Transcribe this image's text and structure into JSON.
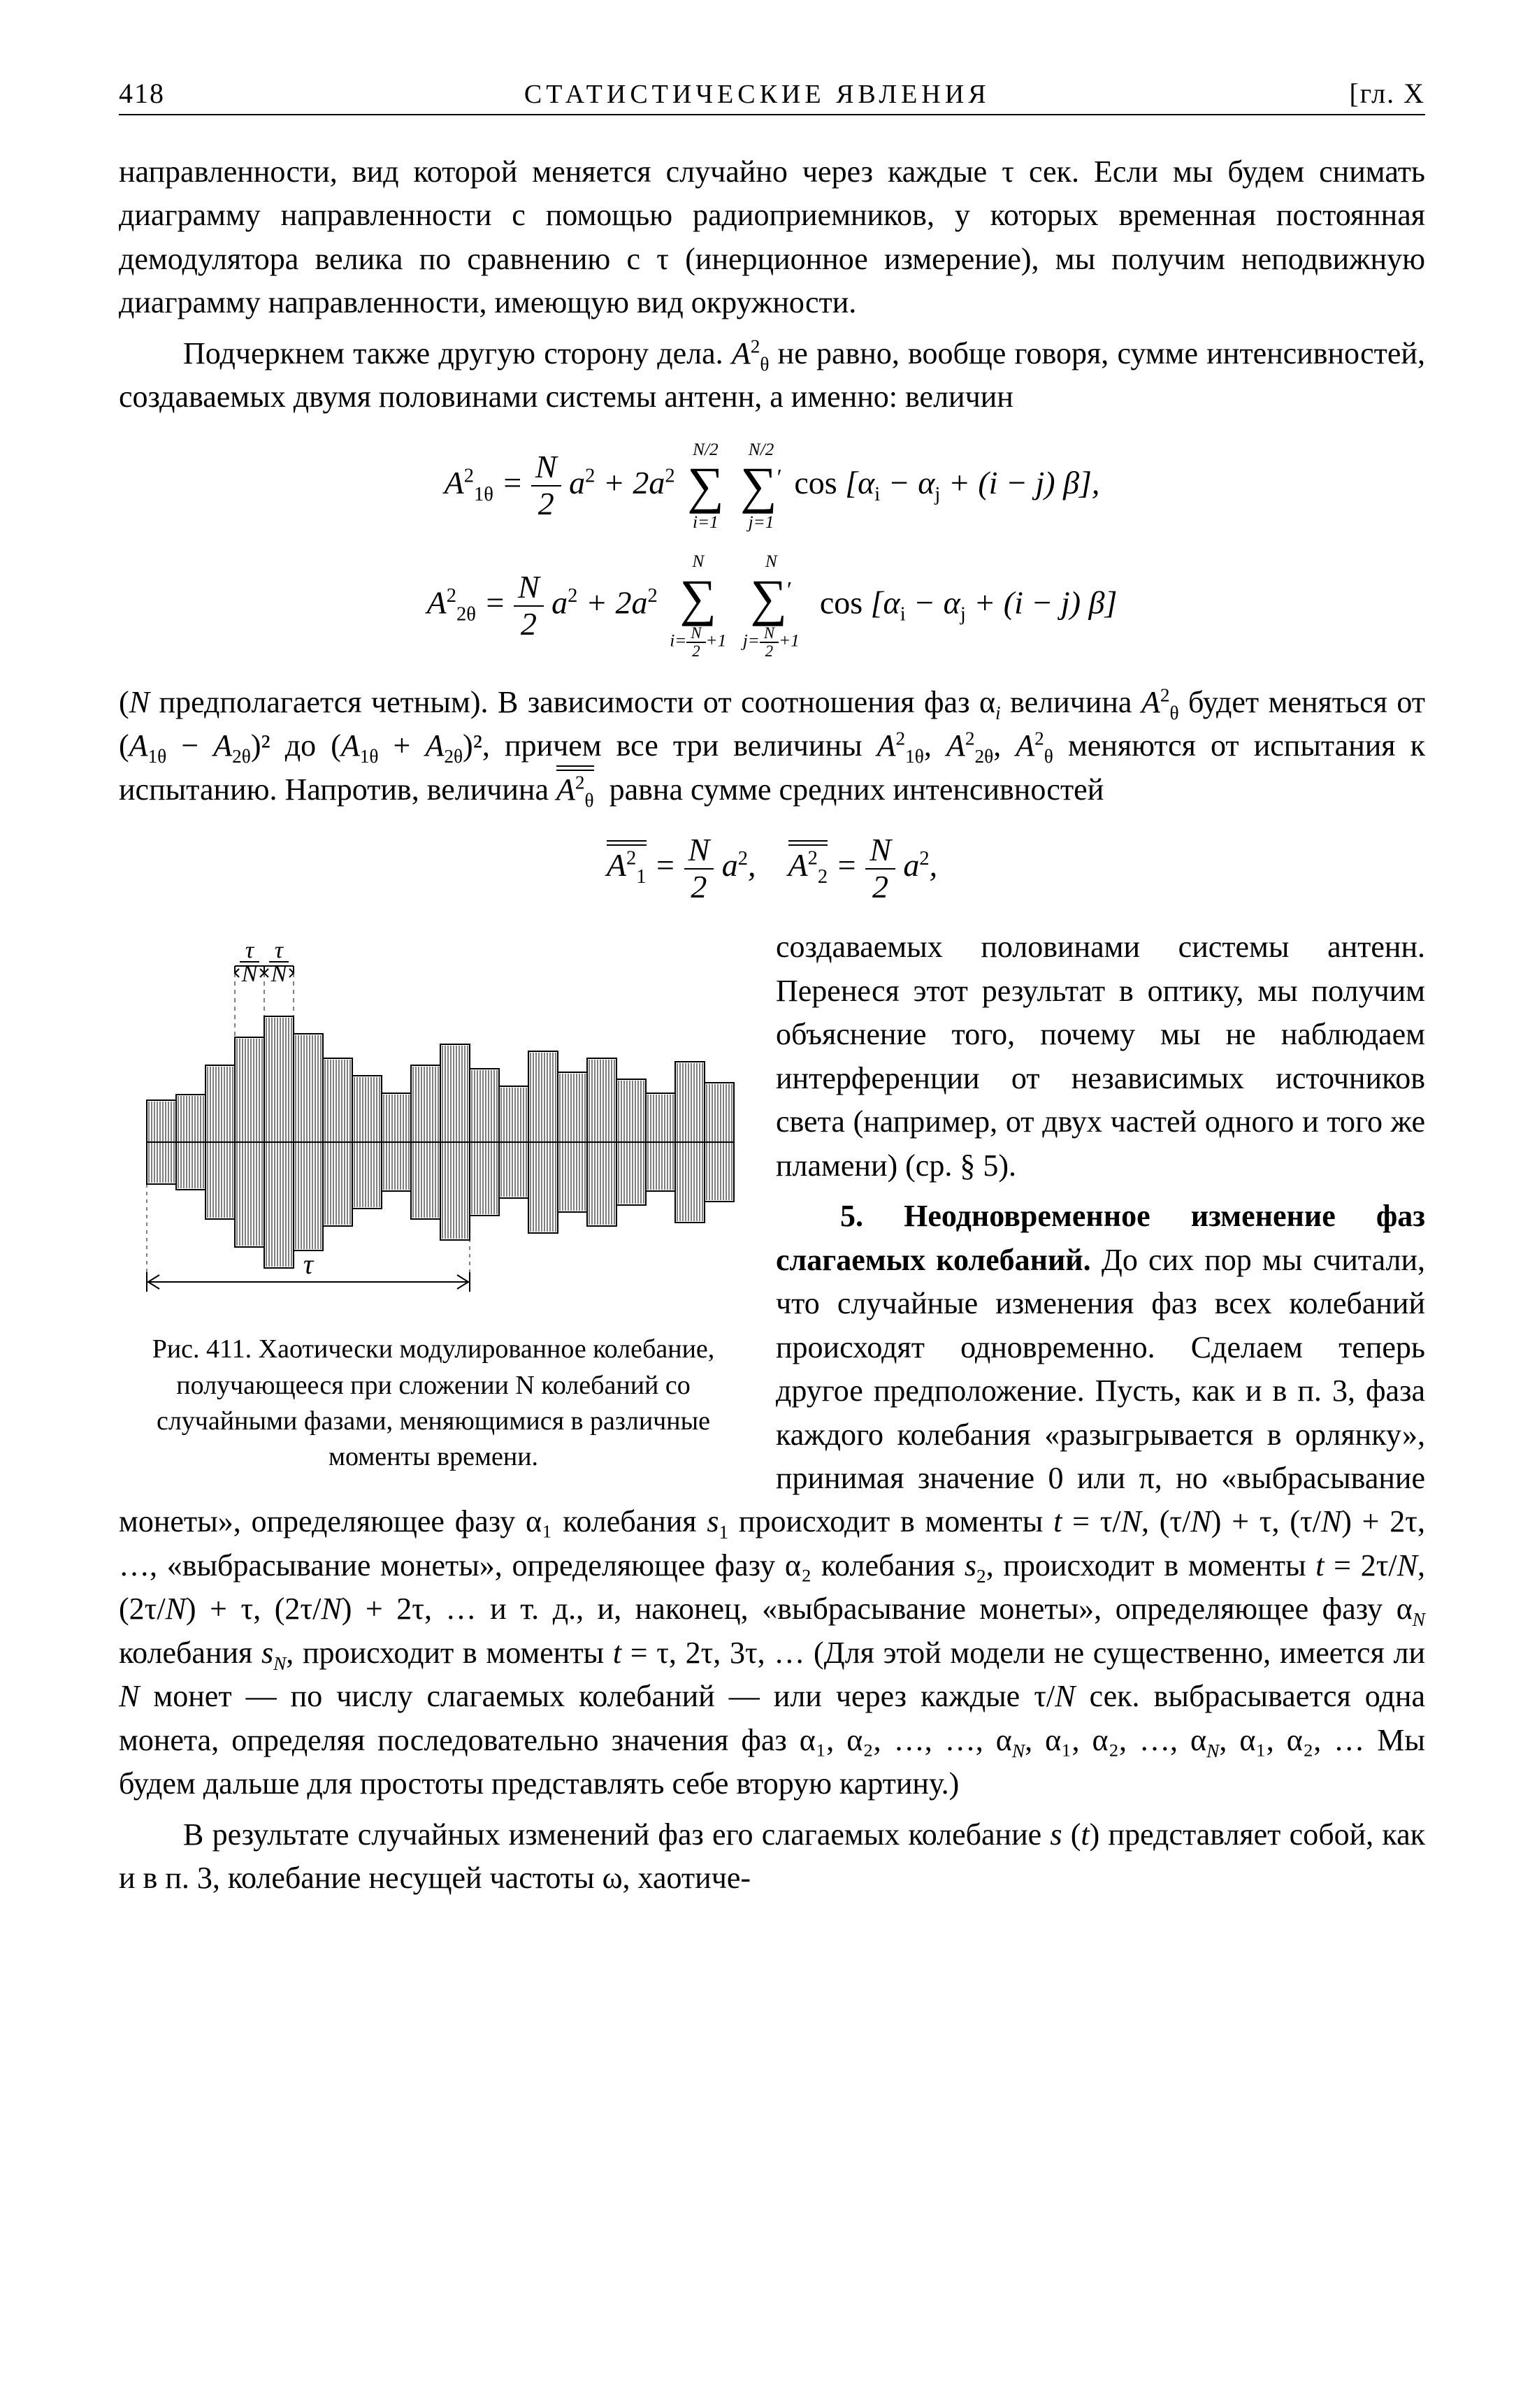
{
  "header": {
    "page_number": "418",
    "running_title": "СТАТИСТИЧЕСКИЕ ЯВЛЕНИЯ",
    "chapter_mark": "[гл. X"
  },
  "paragraphs": {
    "p1": "направленности, вид которой меняется случайно через каждые τ сек. Если мы будем снимать диаграмму направленности с помощью радио­приемников, у которых временная постоянная демодулятора велика по сравнению с τ (инерционное измерение), мы получим неподвижную диаграмму направленности, имеющую вид окружности.",
    "p2_a": "Подчеркнем также другую сторону дела. ",
    "p2_b": " не равно, вообще говоря, сумме интенсивностей, создаваемых двумя половинами системы антенн, а именно: величин",
    "p3_a": "(",
    "p3_b": " предполагается четным). В зависимости от соотношения фаз α",
    "p3_c": " вели­чина ",
    "p3_d": " будет меняться от (",
    "p3_e": ")² до (",
    "p3_f": ")², причем все три ве­личины ",
    "p3_g": " меняются от испытания к испытанию. Напротив, величина ",
    "p3_h": " равна сумме средних интенсивностей",
    "p4": "создаваемых половинами системы антенн. Перенеся этот результат в опти­ку, мы получим объяснение того, почему мы не наблюдаем интерференции от независимых источников света (например, от двух час­тей одного и того же пламени) (ср. § 5).",
    "p5_title": "5. Неодновременное из­менение фаз слагаемых коле­баний.",
    "p5_body_a": " До сих пор мы счи­тали, что случайные измене­ния фаз всех колебаний про­исходят одновременно. Сде­лаем теперь другое предпо­ложение. Пусть, как и в п. 3, фаза каждого колебания «ра­зыгрывается в орлянку», при­нимая значение 0 или π, но «выбрасывание монеты», оп­ределяющее фазу α₁ коле­бания ",
    "p5_body_b": " происходит в моменты ",
    "p5_body_c": ", …, «выбрасы­вание монеты», определяющее фазу α₂ колебания ",
    "p5_body_d": ", происходит в моменты ",
    "p5_body_e": " … и т. д., и, наконец, «выбрасывание монеты», определяющее фазу α",
    "p5_body_f": " колебания ",
    "p5_body_g": ", происходит в моменты ",
    "p5_body_h": " … (Для этой модели не существенно, имеется ли ",
    "p5_body_i": " монет — по числу слагаемых колебаний — или через каждые τ/",
    "p5_body_j": " сек. выбрасы­вается одна монета, определяя последовательно значения фаз α₁, α₂, …, …, α",
    "p5_body_k": ", α₁, α₂, …, α",
    "p5_body_l": ", α₁, α₂, … Мы будем дальше для простоты пред­ставлять себе вторую картину.)",
    "p6": "В результате случайных изменений фаз его слагаемых колебание ",
    "p6b": " представляет собой, как и в п. 3, колебание несущей частоты ω, хаотиче-"
  },
  "figure": {
    "caption": "Рис. 411. Хаотически модулированное колеба­ние, получающееся при сложении N колебаний со случайными фазами, меняющимися в различ­ные моменты времени.",
    "tau_label": "τ",
    "tau_over_N_label": "τ / N",
    "bar_heights": [
      60,
      68,
      110,
      150,
      180,
      155,
      120,
      95,
      70,
      110,
      140,
      105,
      80,
      130,
      100,
      120,
      90,
      70,
      115,
      85
    ],
    "colors": {
      "stroke": "#000000",
      "fill": "#ffffff",
      "background": "#ffffff"
    },
    "line_width": 2,
    "hatch_spacing": 4
  }
}
